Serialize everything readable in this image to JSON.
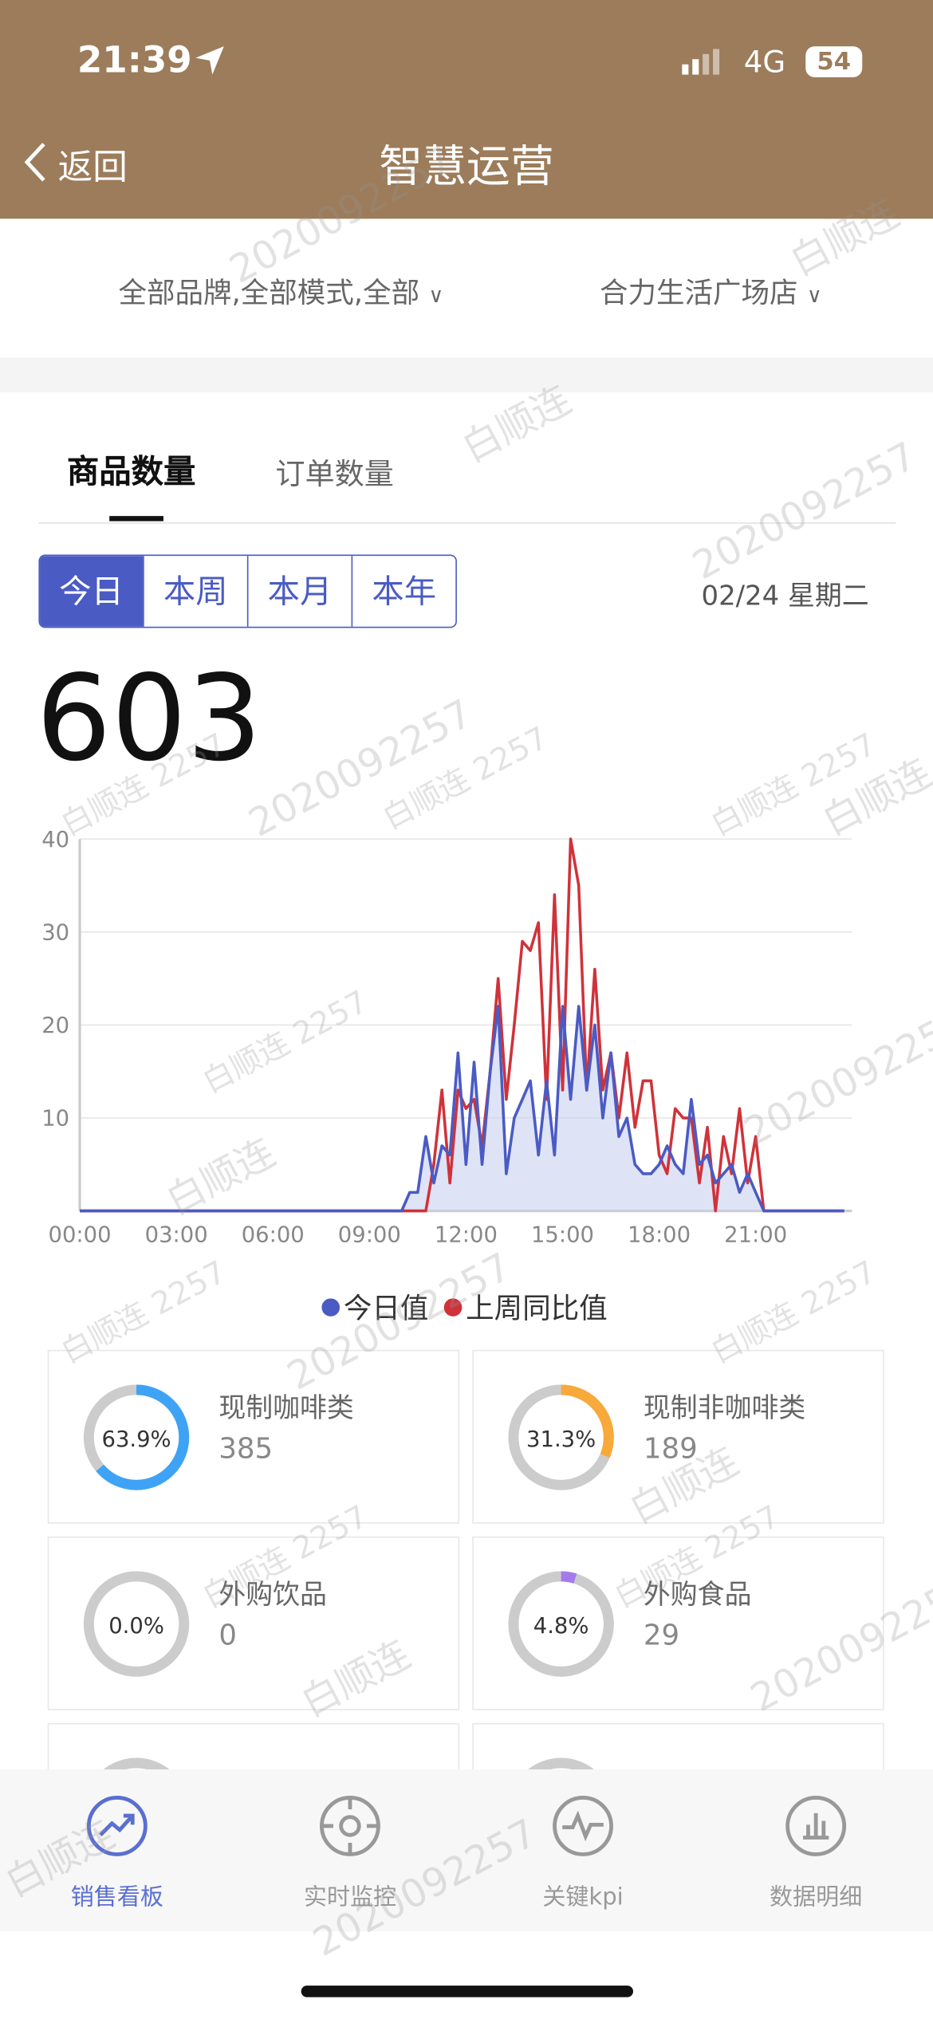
{
  "status_bar": {
    "time": "21:39",
    "network": "4G",
    "battery": "54"
  },
  "header": {
    "back": "返回",
    "title": "智慧运营"
  },
  "filters": [
    "全部品牌,全部模式,全部",
    "合力生活广场店"
  ],
  "tabs": [
    "商品数量",
    "订单数量"
  ],
  "period_buttons": [
    "今日",
    "本周",
    "本月",
    "本年"
  ],
  "date": "02/24 星期二",
  "total": "603",
  "chart_data": {
    "type": "line",
    "x": [
      0,
      0.25,
      0.5,
      0.75,
      1,
      1.25,
      1.5,
      1.75,
      2,
      2.25,
      2.5,
      2.75,
      3,
      3.25,
      3.5,
      3.75,
      4,
      4.25,
      4.5,
      4.75,
      5,
      5.25,
      5.5,
      5.75,
      6,
      6.25,
      6.5,
      6.75,
      7,
      7.25,
      7.5,
      7.75,
      8,
      8.25,
      8.5,
      8.75,
      9,
      9.25,
      9.5,
      9.75,
      10,
      10.25,
      10.5,
      10.75,
      11,
      11.25,
      11.5,
      11.75,
      12,
      12.25,
      12.5,
      12.75,
      13,
      13.25,
      13.5,
      13.75,
      14,
      14.25,
      14.5,
      14.75,
      15,
      15.25,
      15.5,
      15.75,
      16,
      16.25,
      16.5,
      16.75,
      17,
      17.25,
      17.5,
      17.75,
      18,
      18.25,
      18.5,
      18.75,
      19,
      19.25,
      19.5,
      19.75,
      20,
      20.25,
      20.5,
      20.75,
      21,
      21.25,
      21.5,
      21.75,
      22,
      22.25,
      22.5,
      22.75,
      23,
      23.25,
      23.5,
      23.75
    ],
    "series": [
      {
        "name": "今日值",
        "color": "#4a5bc4",
        "values": [
          0,
          0,
          0,
          0,
          0,
          0,
          0,
          0,
          0,
          0,
          0,
          0,
          0,
          0,
          0,
          0,
          0,
          0,
          0,
          0,
          0,
          0,
          0,
          0,
          0,
          0,
          0,
          0,
          0,
          0,
          0,
          0,
          0,
          0,
          0,
          0,
          0,
          0,
          0,
          0,
          0,
          2,
          2,
          8,
          3,
          7,
          6,
          17,
          5,
          16,
          5,
          15,
          22,
          4,
          10,
          12,
          14,
          6,
          14,
          6,
          22,
          12,
          22,
          13,
          20,
          10,
          17,
          8,
          10,
          5,
          4,
          4,
          5,
          7,
          5,
          4,
          12,
          5,
          6,
          3,
          4,
          5,
          2,
          4,
          2,
          0,
          0,
          0,
          0,
          0,
          0,
          0,
          0,
          0,
          0,
          0
        ]
      },
      {
        "name": "上周同比值",
        "color": "#d0323a",
        "values": [
          0,
          0,
          0,
          0,
          0,
          0,
          0,
          0,
          0,
          0,
          0,
          0,
          0,
          0,
          0,
          0,
          0,
          0,
          0,
          0,
          0,
          0,
          0,
          0,
          0,
          0,
          0,
          0,
          0,
          0,
          0,
          0,
          0,
          0,
          0,
          0,
          0,
          0,
          0,
          0,
          0,
          0,
          0,
          0,
          5,
          13,
          3,
          13,
          11,
          12,
          7,
          15,
          25,
          12,
          20,
          29,
          28,
          31,
          12,
          34,
          13,
          40,
          35,
          13,
          26,
          13,
          17,
          10,
          17,
          9,
          14,
          14,
          6,
          4,
          11,
          10,
          10,
          3,
          9,
          0,
          8,
          4,
          11,
          3,
          8,
          0,
          0,
          0,
          0,
          0,
          0,
          0,
          0,
          0,
          0,
          0
        ]
      }
    ],
    "area_color": "#c9d0f0",
    "xlim": [
      0,
      23.75
    ],
    "xticks": [
      {
        "value": 0,
        "label": "00:00"
      },
      {
        "value": 3,
        "label": "03:00"
      },
      {
        "value": 6,
        "label": "06:00"
      },
      {
        "value": 9,
        "label": "09:00"
      },
      {
        "value": 12,
        "label": "12:00"
      },
      {
        "value": 15,
        "label": "15:00"
      },
      {
        "value": 18,
        "label": "18:00"
      },
      {
        "value": 21,
        "label": "21:00"
      }
    ],
    "ylim": [
      0,
      40
    ],
    "yticks": [
      10,
      20,
      30,
      40
    ],
    "grid": true
  },
  "cards": [
    {
      "label": "现制咖啡类",
      "value": 63.9,
      "percent": "63.9%",
      "count": 385,
      "color": "#3fa3f5"
    },
    {
      "label": "现制非咖啡类",
      "value": 31.3,
      "percent": "31.3%",
      "count": 189,
      "color": "#f7a93a"
    },
    {
      "label": "外购饮品",
      "value": 0,
      "percent": "0.0%",
      "count": 0,
      "color": "#3fa3f5"
    },
    {
      "label": "外购食品",
      "value": 4.8,
      "percent": "4.8%",
      "count": 29,
      "color": "#a57bec"
    }
  ],
  "bottom_nav": [
    "销售看板",
    "实时监控",
    "关键kpi",
    "数据明细"
  ],
  "watermarks": [
    "白顺连",
    "2020092257",
    "白顺连 2257"
  ]
}
